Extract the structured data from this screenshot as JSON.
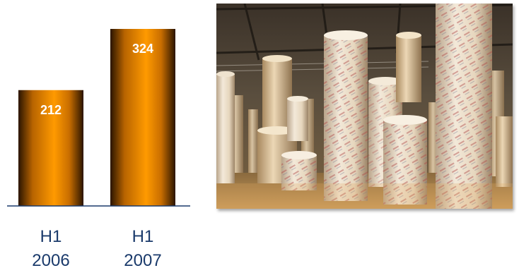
{
  "chart_data": {
    "type": "bar",
    "categories": [
      [
        "H1",
        "2006"
      ],
      [
        "H1",
        "2007"
      ]
    ],
    "values": [
      212,
      324
    ],
    "data_labels": [
      "212",
      "324"
    ],
    "title": "",
    "xlabel": "",
    "ylabel": "",
    "ylim": [
      0,
      324
    ],
    "grid": false,
    "legend": "none"
  },
  "colors": {
    "bar_core": "#ff9a00",
    "bar_edge": "#2a1400",
    "axis": "#1a3a6b",
    "label": "#1a3a6b",
    "value_text": "#ffffff"
  },
  "photo": {
    "subject": "paper-rolls-warehouse-photo"
  }
}
